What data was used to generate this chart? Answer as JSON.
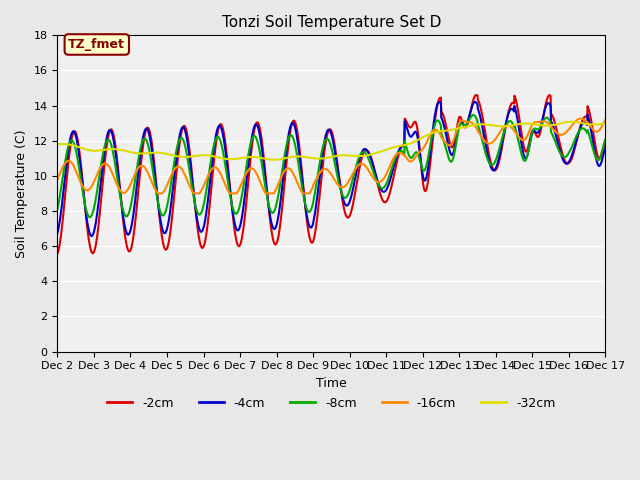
{
  "title": "Tonzi Soil Temperature Set D",
  "xlabel": "Time",
  "ylabel": "Soil Temperature (C)",
  "ylim": [
    0,
    18
  ],
  "yticks": [
    0,
    2,
    4,
    6,
    8,
    10,
    12,
    14,
    16,
    18
  ],
  "xtick_labels": [
    "Dec 2",
    "Dec 3",
    "Dec 4",
    "Dec 5",
    "Dec 6",
    "Dec 7",
    "Dec 8",
    "Dec 9",
    "Dec 10",
    "Dec 11",
    "Dec 12",
    "Dec 13",
    "Dec 14",
    "Dec 15",
    "Dec 16",
    "Dec 17"
  ],
  "annotation_text": "TZ_fmet",
  "annotation_bg": "#ffffcc",
  "annotation_border": "#880000",
  "annotation_text_color": "#880000",
  "colors": {
    "-2cm": "#dd0000",
    "-4cm": "#0000cc",
    "-8cm": "#00aa00",
    "-16cm": "#ff8800",
    "-32cm": "#dddd00"
  },
  "line_width": 1.5,
  "bg_color": "#e8e8e8",
  "plot_bg": "#f0f0f0",
  "grid_color": "#ffffff"
}
